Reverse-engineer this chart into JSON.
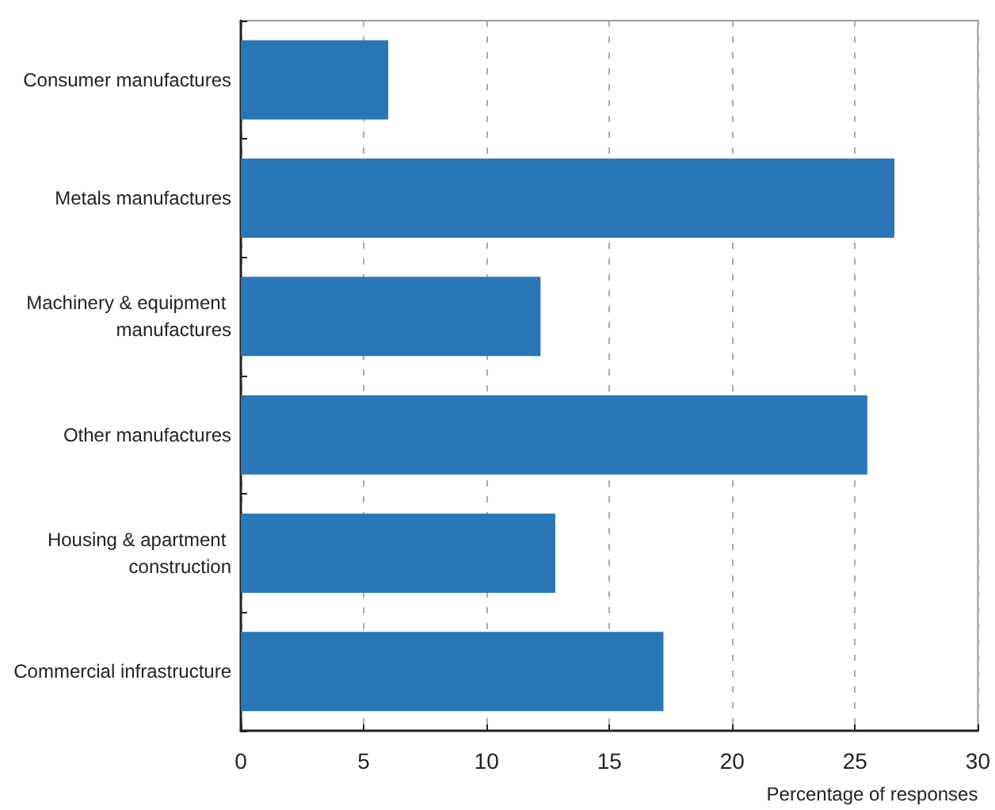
{
  "chart_data": {
    "type": "bar",
    "orientation": "horizontal",
    "xlabel": "Percentage of responses",
    "categories": [
      "Consumer manufactures",
      "Metals manufactures",
      "Machinery & equipment manufactures",
      "Other manufactures",
      "Housing & apartment construction",
      "Commercial infrastructure"
    ],
    "values": [
      6.0,
      26.6,
      12.2,
      25.5,
      12.8,
      17.2
    ],
    "color": "#2a77b8",
    "xlim": [
      0,
      30
    ],
    "xticks": [
      0,
      5,
      10,
      15,
      20,
      25,
      30
    ],
    "grid": "x"
  }
}
